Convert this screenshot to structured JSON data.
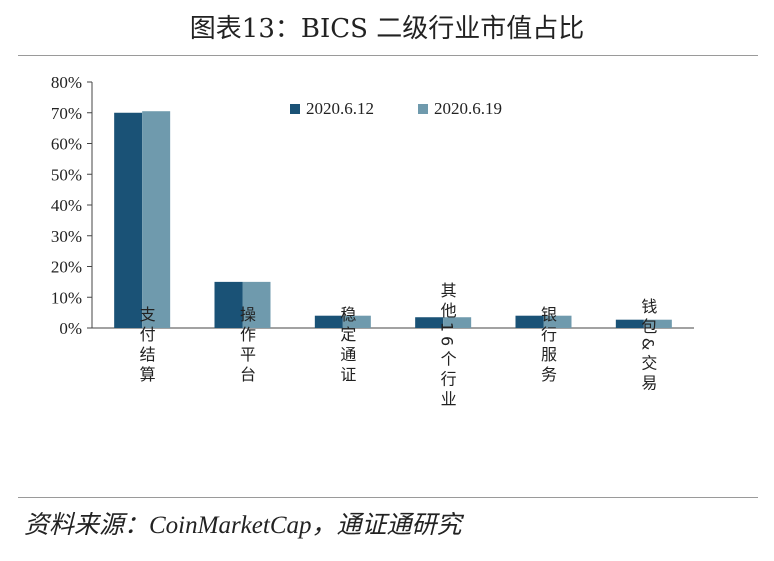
{
  "title": "图表13：BICS 二级行业市值占比",
  "source": "资料来源：CoinMarketCap，通证通研究",
  "chart_data": {
    "type": "bar",
    "categories": [
      "支付结算",
      "操作平台",
      "稳定通证",
      "其他16个行业",
      "银行服务",
      "钱包&交易"
    ],
    "series": [
      {
        "name": "2020.6.12",
        "color": "#1a5276",
        "values": [
          70,
          15,
          4,
          3.5,
          4,
          2.7
        ]
      },
      {
        "name": "2020.6.19",
        "color": "#6f9aad",
        "values": [
          70.5,
          15,
          4,
          3.5,
          4,
          2.7
        ]
      }
    ],
    "yticks": [
      "0%",
      "10%",
      "20%",
      "30%",
      "40%",
      "50%",
      "60%",
      "70%",
      "80%"
    ],
    "ylim": [
      0,
      80
    ],
    "legend_position": "top-center",
    "grid": false
  }
}
